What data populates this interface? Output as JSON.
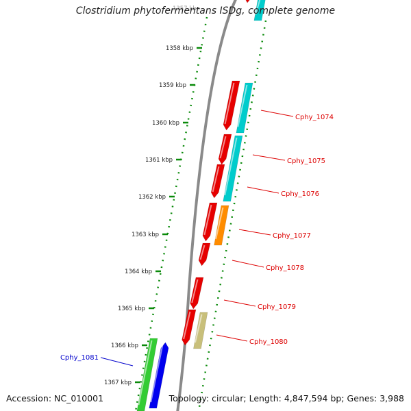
{
  "title": "Clostridium phytofermentans ISDg, complete genome",
  "accession": "Accession: NC_010001",
  "topology": "Topology: circular; Length: 4,847,594 bp; Genes: 3,988",
  "colors": {
    "backbone": "#8a8a8a",
    "ruler": "#0a8a0a",
    "red": "#e60000",
    "cyan": "#00cccc",
    "orange": "#ff8c00",
    "khaki": "#c8bf7a",
    "green": "#33cc33",
    "blue": "#0000ee",
    "label_red": "#dd0000",
    "label_blue": "#0000cc"
  },
  "ruler": {
    "partial_label": "1357 kbp",
    "ticks": [
      {
        "label": "1358 kbp"
      },
      {
        "label": "1359 kbp"
      },
      {
        "label": "1360 kbp"
      },
      {
        "label": "1361 kbp"
      },
      {
        "label": "1362 kbp"
      },
      {
        "label": "1363 kbp"
      },
      {
        "label": "1364 kbp"
      },
      {
        "label": "1365 kbp"
      },
      {
        "label": "1366 kbp"
      },
      {
        "label": "1367 kbp"
      }
    ]
  },
  "gene_labels": [
    {
      "name": "Cphy_1074",
      "color": "label_red"
    },
    {
      "name": "Cphy_1075",
      "color": "label_red"
    },
    {
      "name": "Cphy_1076",
      "color": "label_red"
    },
    {
      "name": "Cphy_1077",
      "color": "label_red"
    },
    {
      "name": "Cphy_1078",
      "color": "label_red"
    },
    {
      "name": "Cphy_1079",
      "color": "label_red"
    },
    {
      "name": "Cphy_1080",
      "color": "label_red"
    },
    {
      "name": "Cphy_1081",
      "color": "label_blue"
    }
  ]
}
